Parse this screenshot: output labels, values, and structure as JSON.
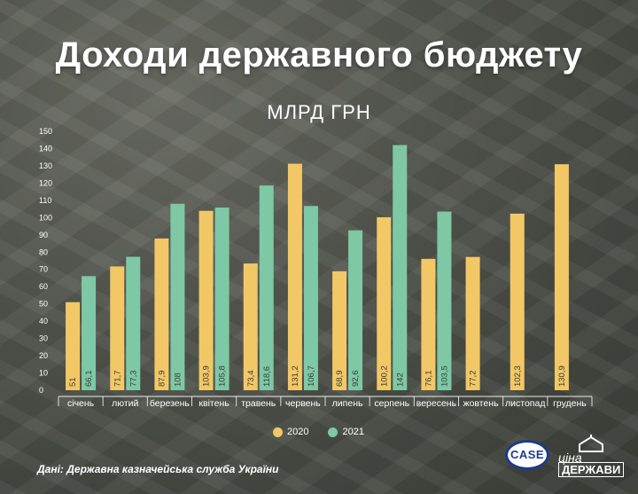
{
  "header": {
    "title": "Доходи державного бюджету",
    "subtitle": "МЛРД ГРН"
  },
  "footer": {
    "source": "Дані: Державна казначейська служба України",
    "case_logo_text": "CASE",
    "tsina_line1": "ціна",
    "tsina_line2": "ДЕРЖАВИ"
  },
  "colors": {
    "series_2020": "#f2c866",
    "series_2021": "#7ec8a6"
  },
  "chart_data": {
    "type": "bar",
    "title": "Доходи державного бюджету",
    "subtitle": "МЛРД ГРН",
    "xlabel": "",
    "ylabel": "",
    "ylim": [
      0,
      150
    ],
    "yticks": [
      0,
      10,
      20,
      30,
      40,
      50,
      60,
      70,
      80,
      90,
      100,
      110,
      120,
      130,
      140,
      150
    ],
    "grid": false,
    "legend_position": "bottom",
    "categories": [
      "січень",
      "лютий",
      "березень",
      "квітень",
      "травень",
      "червень",
      "липень",
      "серпень",
      "вересень",
      "жовтень",
      "листопад",
      "грудень"
    ],
    "series": [
      {
        "name": "2020",
        "values": [
          51,
          71.7,
          87.9,
          103.9,
          73.4,
          131.2,
          68.9,
          100.2,
          76.1,
          77.2,
          102.3,
          130.9
        ],
        "labels": [
          "51",
          "71,7",
          "87,9",
          "103,9",
          "73,4",
          "131,2",
          "68,9",
          "100,2",
          "76,1",
          "77,2",
          "102,3",
          "130,9"
        ]
      },
      {
        "name": "2021",
        "values": [
          66.1,
          77.3,
          108,
          105.8,
          118.6,
          106.7,
          92.6,
          142,
          103.5,
          null,
          null,
          null
        ],
        "labels": [
          "66,1",
          "77,3",
          "108",
          "105,8",
          "118,6",
          "106,7",
          "92,6",
          "142",
          "103,5",
          "",
          "",
          ""
        ]
      }
    ]
  }
}
